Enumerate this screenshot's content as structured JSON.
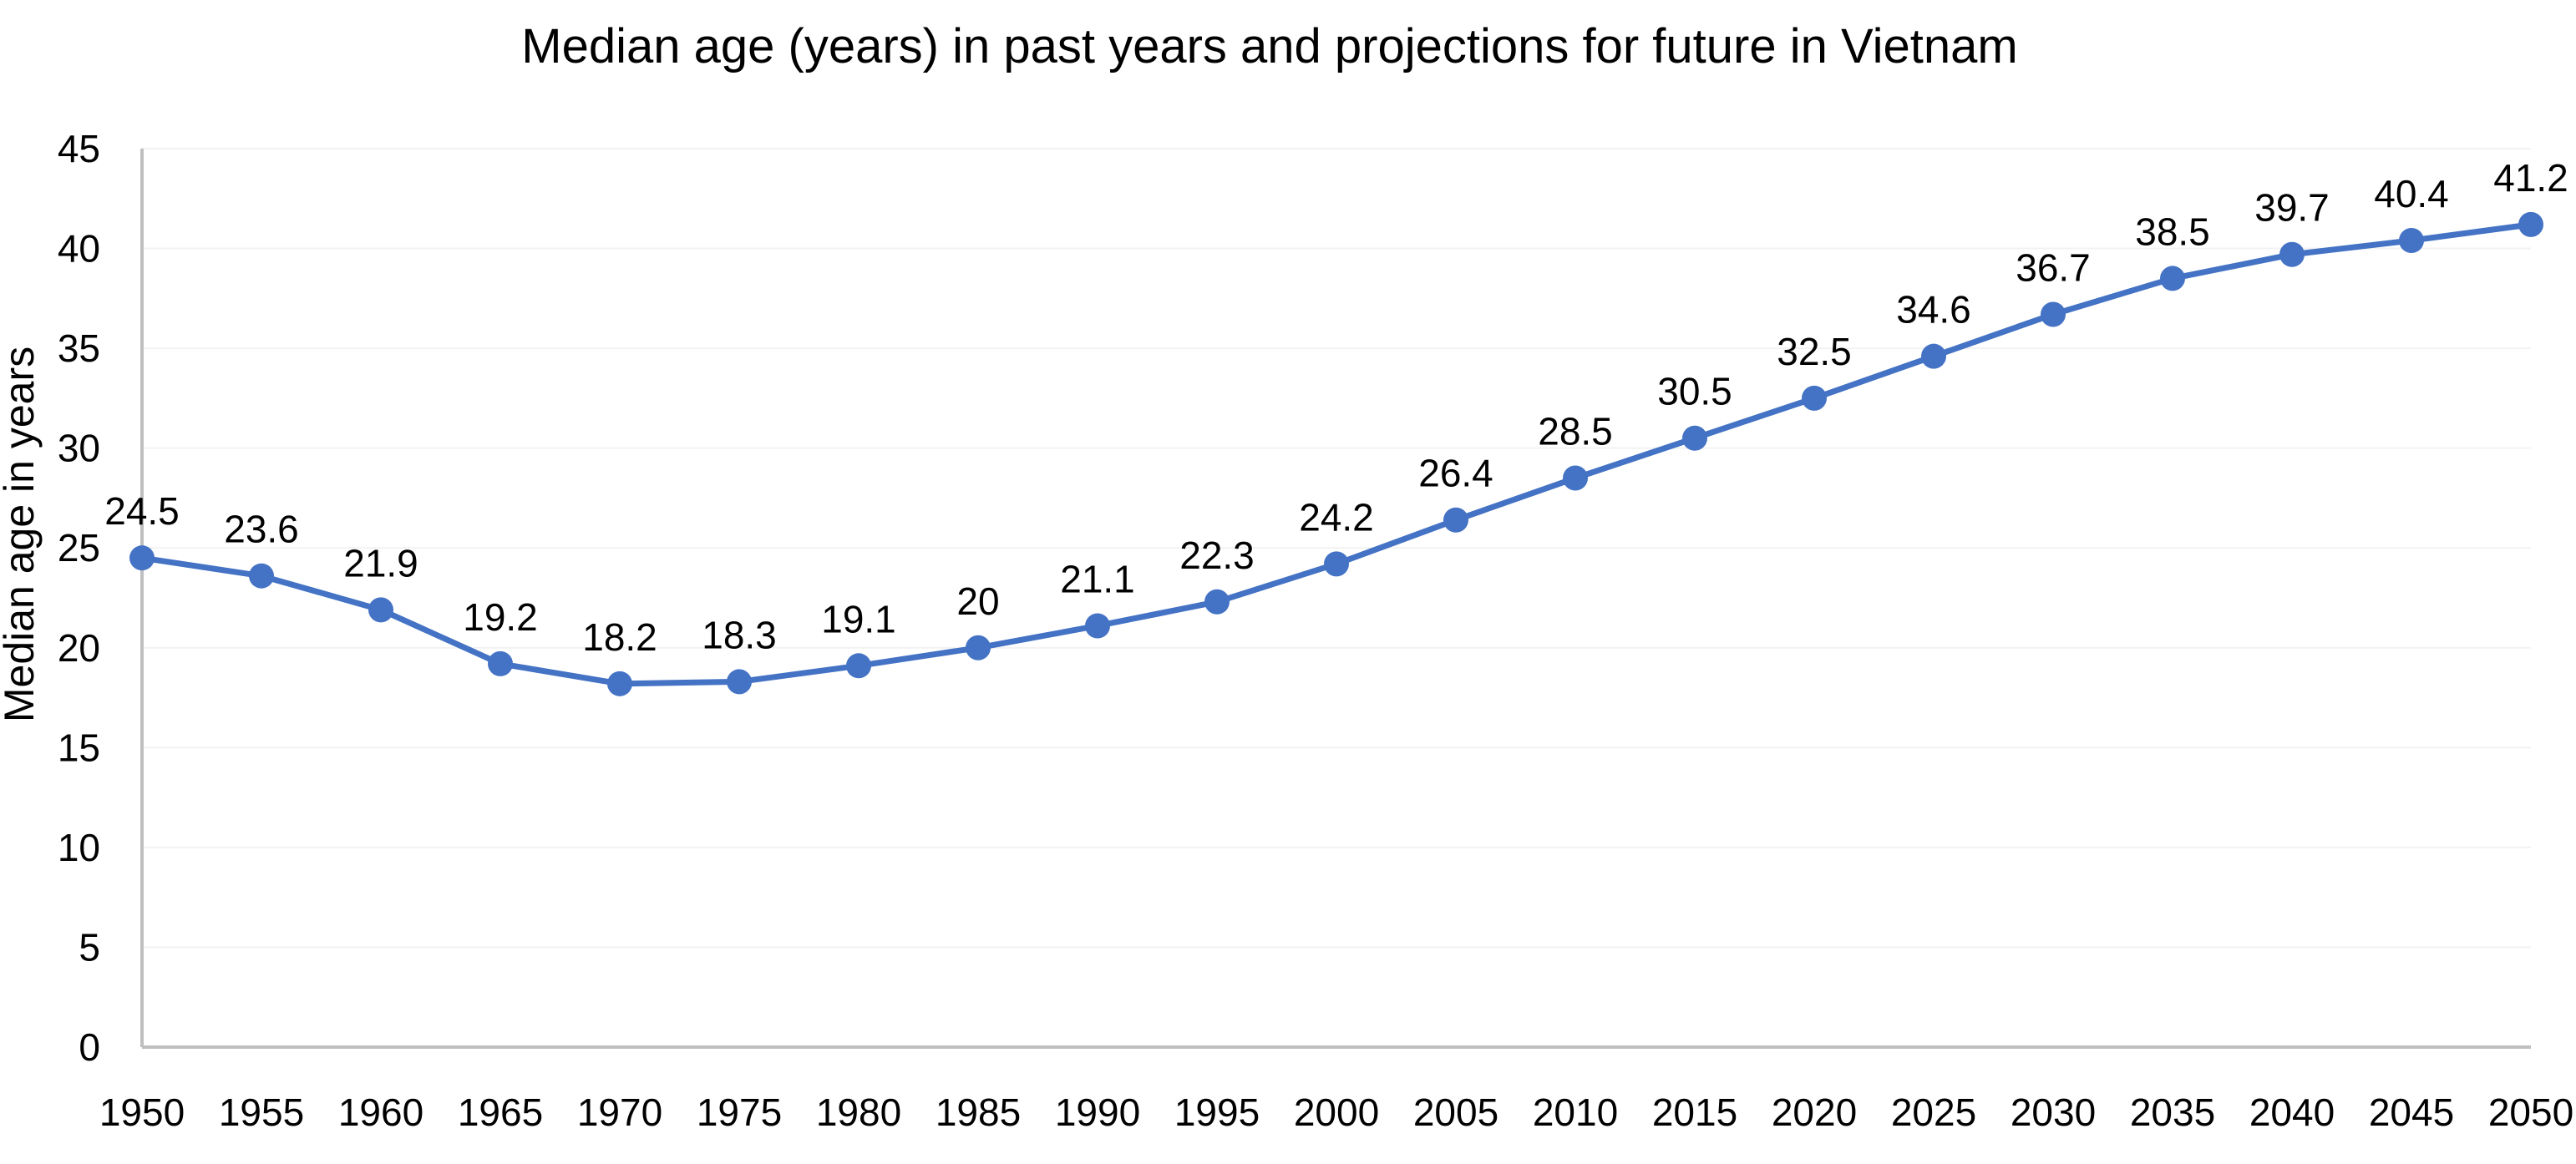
{
  "chart_data": {
    "type": "line",
    "title": "Median age (years) in past years and projections for future in Vietnam",
    "xlabel": "",
    "ylabel": "Median age in years",
    "ylim": [
      0,
      45
    ],
    "yticks": [
      "0",
      "5",
      "10",
      "15",
      "20",
      "25",
      "30",
      "35",
      "40",
      "45"
    ],
    "categories": [
      "1950",
      "1955",
      "1960",
      "1965",
      "1970",
      "1975",
      "1980",
      "1985",
      "1990",
      "1995",
      "2000",
      "2005",
      "2010",
      "2015",
      "2020",
      "2025",
      "2030",
      "2035",
      "2040",
      "2045",
      "2050"
    ],
    "series": [
      {
        "values": [
          24.5,
          23.6,
          21.9,
          19.2,
          18.2,
          18.3,
          19.1,
          20,
          21.1,
          22.3,
          24.2,
          26.4,
          28.5,
          30.5,
          32.5,
          34.6,
          36.7,
          38.5,
          39.7,
          40.4,
          41.2
        ],
        "labels": [
          "24.5",
          "23.6",
          "21.9",
          "19.2",
          "18.2",
          "18.3",
          "19.1",
          "20",
          "21.1",
          "22.3",
          "24.2",
          "26.4",
          "28.5",
          "30.5",
          "32.5",
          "34.6",
          "36.7",
          "38.5",
          "39.7",
          "40.4",
          "41.2"
        ],
        "color": "#4472C4"
      }
    ],
    "grid": true,
    "grid_color": "#F2F2F2",
    "axis_color": "#BFBFBF",
    "legend": "none",
    "data_labels": "above"
  }
}
